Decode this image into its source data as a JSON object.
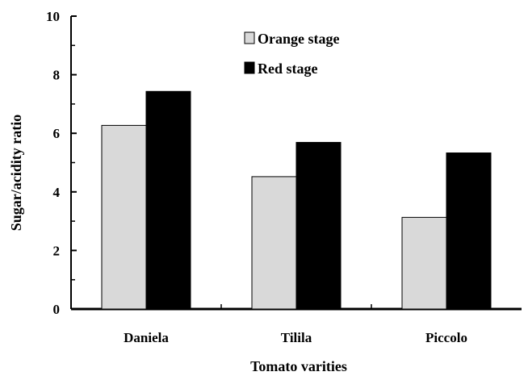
{
  "chart_data": {
    "type": "bar",
    "title": "",
    "xlabel": "Tomato varities",
    "ylabel": "Sugar/acidity ratio",
    "categories": [
      "Daniela",
      "Tilila",
      "Piccolo"
    ],
    "series": [
      {
        "name": "Orange stage",
        "color": "#d9d9d9",
        "values": [
          6.27,
          4.52,
          3.13
        ]
      },
      {
        "name": "Red stage",
        "color": "#000000",
        "values": [
          7.43,
          5.69,
          5.33
        ]
      }
    ],
    "ylim": [
      0,
      10
    ],
    "yticks": [
      "0",
      "2",
      "4",
      "6",
      "8",
      "10"
    ],
    "grid": false,
    "legend_position": "top-center"
  }
}
